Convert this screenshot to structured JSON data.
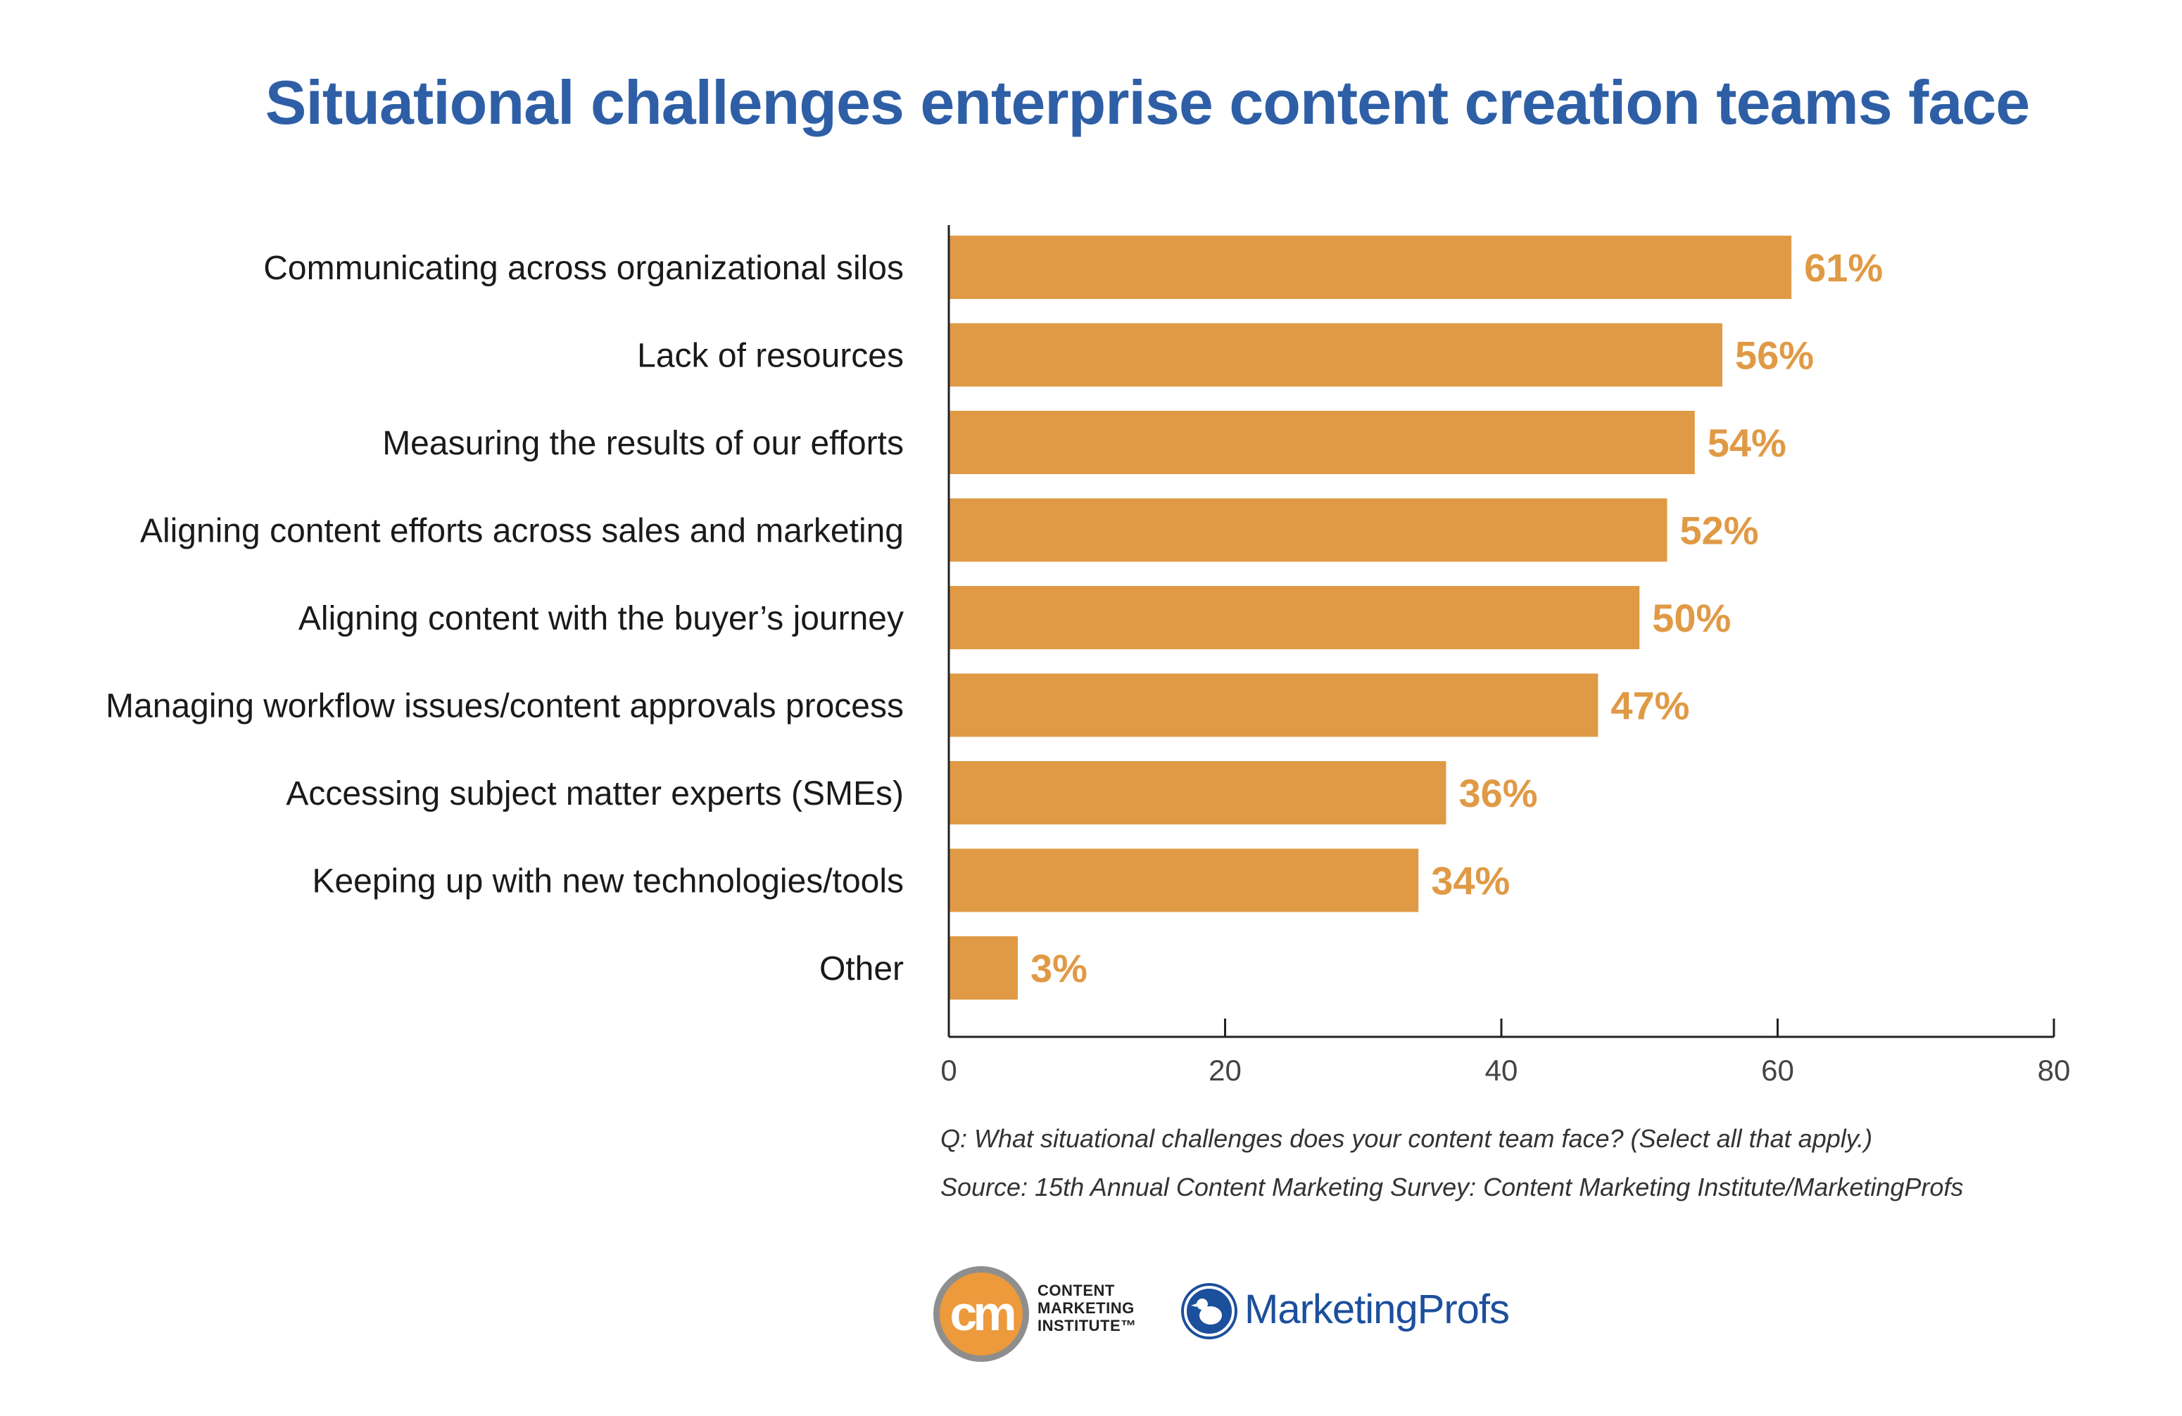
{
  "chart_data": {
    "type": "bar",
    "orientation": "horizontal",
    "title": "Situational challenges enterprise content creation teams face",
    "categories": [
      "Communicating across organizational silos",
      "Lack of resources",
      "Measuring the results of our efforts",
      "Aligning content efforts across sales and marketing",
      "Aligning content with the buyer’s journey",
      "Managing workflow issues/content approvals process",
      "Accessing subject matter experts (SMEs)",
      "Keeping up with new technologies/tools",
      "Other"
    ],
    "values": [
      61,
      56,
      54,
      52,
      50,
      47,
      36,
      34,
      3
    ],
    "value_labels": [
      "61%",
      "56%",
      "54%",
      "52%",
      "50%",
      "47%",
      "36%",
      "34%",
      "3%"
    ],
    "xlim": [
      0,
      80
    ],
    "xticks": [
      0,
      20,
      40,
      60,
      80
    ],
    "xlabel": "",
    "ylabel": "",
    "grid": false,
    "bar_color": "#e09a45",
    "label_color": "#e09a45"
  },
  "notes": {
    "question": "Q: What situational challenges does your content team face? (Select all that apply.)",
    "source": "Source: 15th Annual Content Marketing Survey: Content Marketing Institute/MarketingProfs"
  },
  "logos": {
    "cmi_mark": "cm",
    "cmi_name_lines": [
      "CONTENT",
      "MARKETING",
      "INSTITUTE™"
    ],
    "mp_name": "MarketingProfs"
  },
  "colors": {
    "title": "#2e5fa6",
    "axis": "#222222",
    "cmi_orange": "#ec9a3c",
    "mp_blue": "#1c4f9c"
  }
}
